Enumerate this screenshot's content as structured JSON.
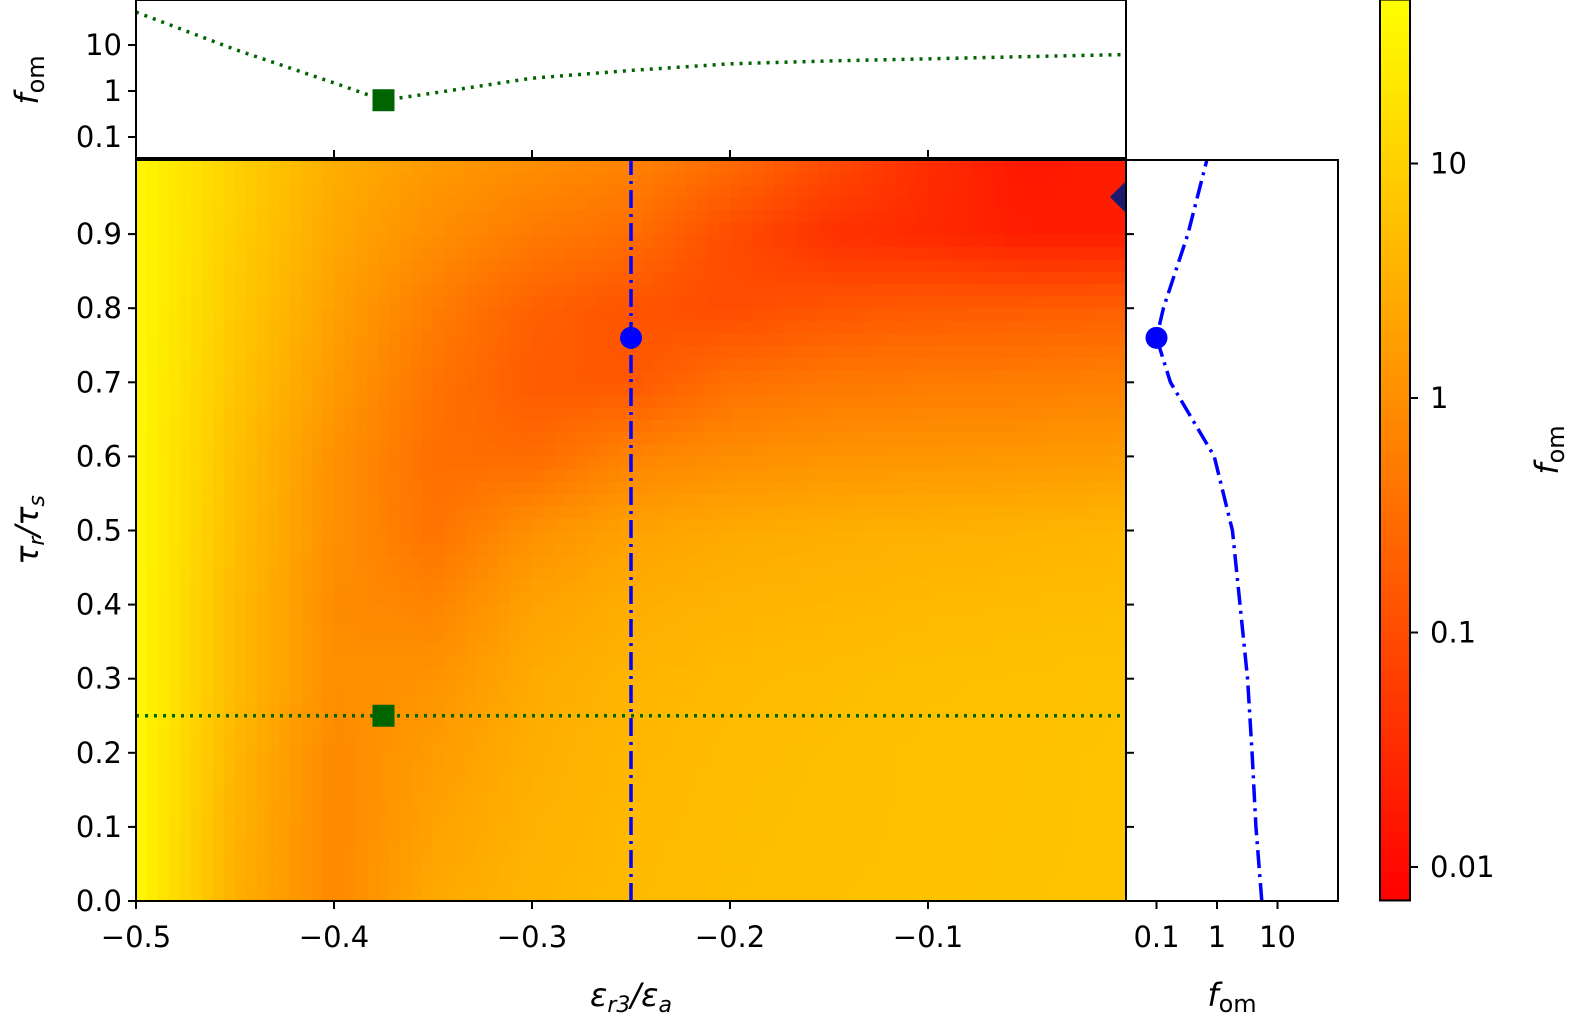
{
  "chart_data": [
    {
      "type": "heatmap",
      "title": "",
      "xlabel": "εr3/εa",
      "ylabel": "τr/τs",
      "xlim": [
        -0.5,
        0.0
      ],
      "ylim": [
        0.0,
        1.0
      ],
      "x_ticks": [
        "−0.5",
        "−0.4",
        "−0.3",
        "−0.2",
        "−0.1"
      ],
      "x_tick_values": [
        -0.5,
        -0.4,
        -0.3,
        -0.2,
        -0.1
      ],
      "y_ticks": [
        "0.0",
        "0.1",
        "0.2",
        "0.3",
        "0.4",
        "0.5",
        "0.6",
        "0.7",
        "0.8",
        "0.9"
      ],
      "y_tick_values": [
        0,
        0.1,
        0.2,
        0.3,
        0.4,
        0.5,
        0.6,
        0.7,
        0.8,
        0.9
      ],
      "x": [
        -0.5,
        -0.45,
        -0.4,
        -0.35,
        -0.3,
        -0.25,
        -0.2,
        -0.15,
        -0.1,
        -0.05,
        0
      ],
      "y": [
        0,
        0.1,
        0.2,
        0.3,
        0.4,
        0.5,
        0.6,
        0.7,
        0.8,
        0.9,
        1.0
      ],
      "z": [
        [
          40,
          3.2,
          0.8,
          2.5,
          3.8,
          4.6,
          5.1,
          5.5,
          5.8,
          6.1,
          6.3
        ],
        [
          40,
          3.5,
          0.8,
          2.0,
          3.4,
          4.4,
          5.0,
          5.3,
          5.7,
          6.0,
          6.3
        ],
        [
          40,
          4.0,
          0.83,
          1.6,
          3.0,
          4.1,
          4.8,
          5.2,
          5.7,
          5.9,
          6.3
        ],
        [
          40,
          4.7,
          1.0,
          1.2,
          2.7,
          3.8,
          4.5,
          4.9,
          5.4,
          5.7,
          6.0
        ],
        [
          40,
          4.7,
          0.93,
          0.69,
          2.0,
          3.0,
          3.6,
          4.0,
          4.4,
          4.7,
          5.0
        ],
        [
          40,
          5.2,
          1.05,
          0.38,
          1.1,
          2.0,
          2.6,
          3.0,
          3.3,
          3.6,
          4.0
        ],
        [
          40,
          5.6,
          1.1,
          0.34,
          0.29,
          0.69,
          0.98,
          1.2,
          1.3,
          1.4,
          1.6
        ],
        [
          40,
          6.7,
          1.5,
          0.4,
          0.17,
          0.15,
          0.35,
          0.46,
          0.51,
          0.55,
          0.63
        ],
        [
          40,
          7.9,
          1.9,
          0.55,
          0.21,
          0.13,
          0.1,
          0.14,
          0.17,
          0.18,
          0.2
        ],
        [
          40,
          9,
          2.4,
          1.0,
          0.5,
          0.33,
          0.1,
          0.04,
          0.03,
          0.02,
          0.02
        ],
        [
          40,
          10,
          3,
          1.5,
          1.0,
          0.68,
          0.3,
          0.1,
          0.035,
          0.016,
          0.02
        ]
      ],
      "colormap": "autumn",
      "color_scale": "log",
      "colorbar": {
        "label": "f_om",
        "range": [
          0.0072,
          50
        ],
        "ticks": [
          "10",
          "1",
          "0.1",
          "0.01"
        ],
        "tick_values": [
          10,
          1,
          0.1,
          0.01
        ],
        "color_low": "#ff0000",
        "color_high": "#ffff00"
      },
      "lines": [
        {
          "orientation": "horizontal",
          "y": 0.25,
          "style": "dotted",
          "color": "#006400"
        },
        {
          "orientation": "vertical",
          "x": -0.25,
          "style": "dashdot",
          "color": "#0000ff"
        }
      ],
      "markers": [
        {
          "shape": "square",
          "x": -0.375,
          "y": 0.25,
          "color": "#006400"
        },
        {
          "shape": "circle",
          "x": -0.25,
          "y": 0.76,
          "color": "#0000ff"
        },
        {
          "shape": "diamond",
          "x": 0.0,
          "y": 0.95,
          "color": "#191970"
        }
      ]
    },
    {
      "type": "line",
      "panel": "top",
      "ylabel": "f_om",
      "y_scale": "log",
      "y_ticks": [
        "10",
        "1",
        "0.1"
      ],
      "y_tick_values": [
        10,
        1,
        0.1
      ],
      "x": [
        -0.5,
        -0.45,
        -0.4,
        -0.375,
        -0.35,
        -0.3,
        -0.25,
        -0.2,
        -0.15,
        -0.1,
        -0.05,
        0
      ],
      "values": [
        52,
        8,
        1.5,
        0.63,
        0.9,
        1.9,
        2.8,
        3.9,
        4.5,
        5,
        5.6,
        6.2
      ],
      "style": "dotted",
      "color": "#006400",
      "marker": {
        "shape": "square",
        "x": -0.375,
        "value": 0.63
      }
    },
    {
      "type": "line",
      "panel": "right",
      "xlabel": "f_om",
      "x_scale": "log",
      "x_ticks": [
        "0.1",
        "1",
        "10"
      ],
      "x_tick_values": [
        0.1,
        1,
        10
      ],
      "y": [
        0,
        0.1,
        0.2,
        0.3,
        0.4,
        0.5,
        0.6,
        0.7,
        0.76,
        0.8,
        0.9,
        1.0
      ],
      "values": [
        5.5,
        4.4,
        3.8,
        3.2,
        2.4,
        1.8,
        0.9,
        0.17,
        0.1,
        0.13,
        0.33,
        0.68
      ],
      "style": "dashdot",
      "color": "#0000ff",
      "marker": {
        "shape": "circle",
        "y": 0.76,
        "value": 0.1
      }
    }
  ]
}
